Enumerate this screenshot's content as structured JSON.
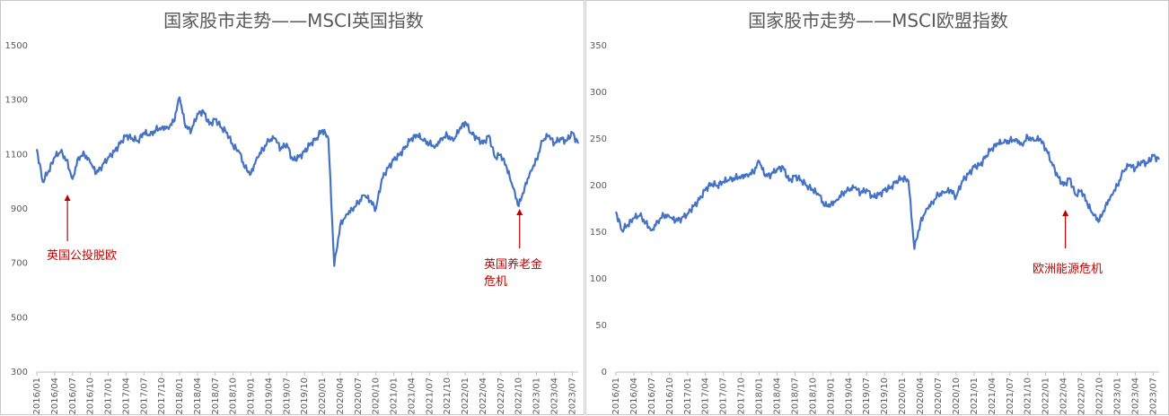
{
  "colors": {
    "line": "#4472C4",
    "axis": "#BFBFBF",
    "annotation": "#C00000",
    "title": "#595959"
  },
  "chart_data": [
    {
      "type": "line",
      "title": "国家股市走势——MSCI英国指数",
      "ylim": [
        300,
        1500
      ],
      "yticks": [
        "300",
        "500",
        "700",
        "900",
        "1100",
        "1300",
        "1500"
      ],
      "grid": false,
      "x_ticks": [
        "2016/01",
        "2016/04",
        "2016/07",
        "2016/10",
        "2017/01",
        "2017/04",
        "2017/07",
        "2017/10",
        "2018/01",
        "2018/04",
        "2018/07",
        "2018/10",
        "2019/01",
        "2019/04",
        "2019/07",
        "2019/10",
        "2020/01",
        "2020/04",
        "2020/07",
        "2020/10",
        "2021/01",
        "2021/04",
        "2021/07",
        "2021/10",
        "2022/01",
        "2022/04",
        "2022/07",
        "2022/10",
        "2023/01",
        "2023/04",
        "2023/07"
      ],
      "series": [
        {
          "x": [
            "2016/01",
            "2016/02",
            "2016/03",
            "2016/04",
            "2016/05",
            "2016/06",
            "2016/07",
            "2016/08",
            "2016/09",
            "2016/10",
            "2016/11",
            "2016/12",
            "2017/01",
            "2017/02",
            "2017/03",
            "2017/04",
            "2017/05",
            "2017/06",
            "2017/07",
            "2017/08",
            "2017/09",
            "2017/10",
            "2017/11",
            "2017/12",
            "2018/01",
            "2018/02",
            "2018/03",
            "2018/04",
            "2018/05",
            "2018/06",
            "2018/07",
            "2018/08",
            "2018/09",
            "2018/10",
            "2018/11",
            "2018/12",
            "2019/01",
            "2019/02",
            "2019/03",
            "2019/04",
            "2019/05",
            "2019/06",
            "2019/07",
            "2019/08",
            "2019/09",
            "2019/10",
            "2019/11",
            "2019/12",
            "2020/01",
            "2020/02",
            "2020/03",
            "2020/04",
            "2020/05",
            "2020/06",
            "2020/07",
            "2020/08",
            "2020/09",
            "2020/10",
            "2020/11",
            "2020/12",
            "2021/01",
            "2021/02",
            "2021/03",
            "2021/04",
            "2021/05",
            "2021/06",
            "2021/07",
            "2021/08",
            "2021/09",
            "2021/10",
            "2021/11",
            "2021/12",
            "2022/01",
            "2022/02",
            "2022/03",
            "2022/04",
            "2022/05",
            "2022/06",
            "2022/07",
            "2022/08",
            "2022/09",
            "2022/10",
            "2022/11",
            "2022/12",
            "2023/01",
            "2023/02",
            "2023/03",
            "2023/04",
            "2023/05",
            "2023/06",
            "2023/07",
            "2023/08"
          ],
          "values": [
            1120,
            1000,
            1040,
            1090,
            1110,
            1080,
            1010,
            1090,
            1100,
            1070,
            1030,
            1060,
            1090,
            1110,
            1140,
            1170,
            1160,
            1150,
            1180,
            1170,
            1190,
            1200,
            1200,
            1220,
            1310,
            1200,
            1190,
            1250,
            1260,
            1210,
            1230,
            1200,
            1180,
            1130,
            1110,
            1050,
            1030,
            1090,
            1120,
            1150,
            1160,
            1120,
            1140,
            1080,
            1090,
            1110,
            1140,
            1160,
            1190,
            1160,
            690,
            840,
            880,
            900,
            920,
            950,
            930,
            900,
            1010,
            1050,
            1080,
            1100,
            1130,
            1160,
            1170,
            1150,
            1140,
            1130,
            1160,
            1170,
            1150,
            1190,
            1220,
            1180,
            1160,
            1140,
            1170,
            1090,
            1100,
            1050,
            980,
            910,
            980,
            1040,
            1080,
            1150,
            1170,
            1140,
            1160,
            1150,
            1180,
            1140
          ]
        }
      ],
      "annotations": [
        {
          "text": "英国公投脱欧",
          "x": "2016/06"
        },
        {
          "text": "英国养老金",
          "text2": "危机",
          "x": "2022/10"
        }
      ]
    },
    {
      "type": "line",
      "title": "国家股市走势——MSCI欧盟指数",
      "ylim": [
        0,
        350
      ],
      "yticks": [
        "0",
        "50",
        "100",
        "150",
        "200",
        "250",
        "300",
        "350"
      ],
      "grid": false,
      "x_ticks": [
        "2016/01",
        "2016/04",
        "2016/07",
        "2016/10",
        "2017/01",
        "2017/04",
        "2017/07",
        "2017/10",
        "2018/01",
        "2018/04",
        "2018/07",
        "2018/10",
        "2019/01",
        "2019/04",
        "2019/07",
        "2019/10",
        "2020/01",
        "2020/04",
        "2020/07",
        "2020/10",
        "2021/01",
        "2021/04",
        "2021/07",
        "2021/10",
        "2022/01",
        "2022/04",
        "2022/07",
        "2022/10",
        "2023/01",
        "2023/04",
        "2023/07"
      ],
      "series": [
        {
          "x": [
            "2016/01",
            "2016/02",
            "2016/03",
            "2016/04",
            "2016/05",
            "2016/06",
            "2016/07",
            "2016/08",
            "2016/09",
            "2016/10",
            "2016/11",
            "2016/12",
            "2017/01",
            "2017/02",
            "2017/03",
            "2017/04",
            "2017/05",
            "2017/06",
            "2017/07",
            "2017/08",
            "2017/09",
            "2017/10",
            "2017/11",
            "2017/12",
            "2018/01",
            "2018/02",
            "2018/03",
            "2018/04",
            "2018/05",
            "2018/06",
            "2018/07",
            "2018/08",
            "2018/09",
            "2018/10",
            "2018/11",
            "2018/12",
            "2019/01",
            "2019/02",
            "2019/03",
            "2019/04",
            "2019/05",
            "2019/06",
            "2019/07",
            "2019/08",
            "2019/09",
            "2019/10",
            "2019/11",
            "2019/12",
            "2020/01",
            "2020/02",
            "2020/03",
            "2020/04",
            "2020/05",
            "2020/06",
            "2020/07",
            "2020/08",
            "2020/09",
            "2020/10",
            "2020/11",
            "2020/12",
            "2021/01",
            "2021/02",
            "2021/03",
            "2021/04",
            "2021/05",
            "2021/06",
            "2021/07",
            "2021/08",
            "2021/09",
            "2021/10",
            "2021/11",
            "2021/12",
            "2022/01",
            "2022/02",
            "2022/03",
            "2022/04",
            "2022/05",
            "2022/06",
            "2022/07",
            "2022/08",
            "2022/09",
            "2022/10",
            "2022/11",
            "2022/12",
            "2023/01",
            "2023/02",
            "2023/03",
            "2023/04",
            "2023/05",
            "2023/06",
            "2023/07",
            "2023/08"
          ],
          "values": [
            172,
            152,
            158,
            165,
            168,
            160,
            152,
            162,
            168,
            166,
            162,
            165,
            170,
            178,
            185,
            196,
            202,
            200,
            204,
            206,
            208,
            210,
            212,
            214,
            226,
            210,
            212,
            218,
            220,
            205,
            210,
            206,
            200,
            195,
            190,
            178,
            180,
            185,
            192,
            195,
            198,
            192,
            196,
            188,
            190,
            195,
            198,
            205,
            208,
            205,
            132,
            160,
            175,
            182,
            190,
            192,
            195,
            188,
            205,
            212,
            220,
            222,
            232,
            240,
            245,
            246,
            248,
            250,
            244,
            252,
            248,
            250,
            240,
            225,
            210,
            200,
            208,
            190,
            195,
            180,
            168,
            162,
            178,
            190,
            200,
            215,
            222,
            218,
            226,
            224,
            232,
            228
          ]
        }
      ],
      "annotations": [
        {
          "text": "欧洲能源危机",
          "x": "2022/04"
        }
      ]
    }
  ]
}
